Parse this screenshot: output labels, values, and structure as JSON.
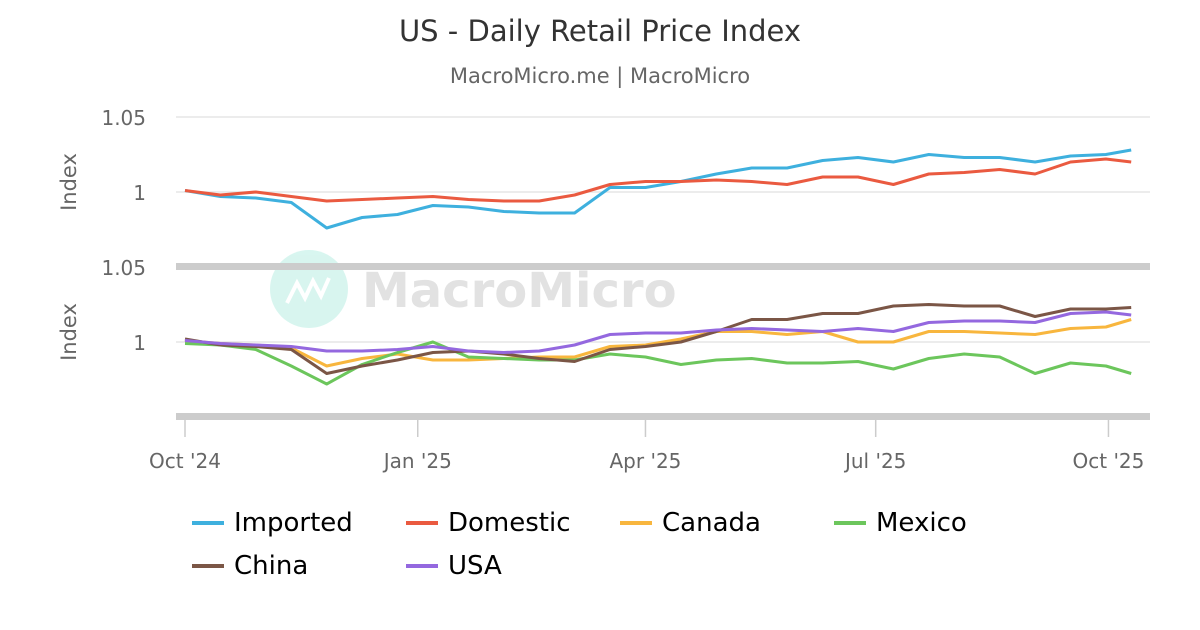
{
  "title": "US - Daily Retail Price Index",
  "subtitle": "MacroMicro.me | MacroMicro",
  "watermark": "MacroMicro",
  "chart_data": [
    {
      "type": "line",
      "panel": "top",
      "ylabel": "Index",
      "ylim": [
        0.95,
        1.05
      ],
      "yticks": [
        {
          "v": 1.05,
          "label": "1.05"
        },
        {
          "v": 1,
          "label": "1"
        }
      ],
      "grid": true,
      "series": [
        {
          "name": "Imported",
          "color": "#3eb0de",
          "values": [
            1.001,
            0.997,
            0.996,
            0.993,
            0.976,
            0.983,
            0.985,
            0.991,
            0.99,
            0.987,
            0.986,
            0.986,
            1.003,
            1.003,
            1.007,
            1.012,
            1.016,
            1.016,
            1.021,
            1.023,
            1.02,
            1.025,
            1.023,
            1.023,
            1.02,
            1.024,
            1.025,
            1.028
          ]
        },
        {
          "name": "Domestic",
          "color": "#ea5a40",
          "values": [
            1.001,
            0.998,
            1.0,
            0.997,
            0.994,
            0.995,
            0.996,
            0.997,
            0.995,
            0.994,
            0.994,
            0.998,
            1.005,
            1.007,
            1.007,
            1.008,
            1.007,
            1.005,
            1.01,
            1.01,
            1.005,
            1.012,
            1.013,
            1.015,
            1.012,
            1.02,
            1.022,
            1.02
          ]
        }
      ]
    },
    {
      "type": "line",
      "panel": "bottom",
      "ylabel": "Index",
      "ylim": [
        0.95,
        1.05
      ],
      "yticks": [
        {
          "v": 1.05,
          "label": "1.05"
        },
        {
          "v": 1,
          "label": "1"
        }
      ],
      "grid": true,
      "series": [
        {
          "name": "Canada",
          "color": "#f8b63e",
          "values": [
            1.001,
            0.999,
            0.998,
            0.996,
            0.984,
            0.989,
            0.992,
            0.988,
            0.988,
            0.989,
            0.99,
            0.99,
            0.997,
            0.998,
            1.002,
            1.007,
            1.007,
            1.005,
            1.007,
            1.0,
            1.0,
            1.007,
            1.007,
            1.006,
            1.005,
            1.009,
            1.01,
            1.015
          ]
        },
        {
          "name": "Mexico",
          "color": "#6cc65c",
          "values": [
            0.999,
            0.998,
            0.995,
            0.984,
            0.972,
            0.985,
            0.993,
            1.0,
            0.99,
            0.989,
            0.988,
            0.988,
            0.992,
            0.99,
            0.985,
            0.988,
            0.989,
            0.986,
            0.986,
            0.987,
            0.982,
            0.989,
            0.992,
            0.99,
            0.979,
            0.986,
            0.984,
            0.979
          ]
        },
        {
          "name": "China",
          "color": "#7b5646",
          "values": [
            1.002,
            0.998,
            0.997,
            0.995,
            0.979,
            0.984,
            0.988,
            0.993,
            0.994,
            0.992,
            0.989,
            0.987,
            0.995,
            0.997,
            1.0,
            1.007,
            1.015,
            1.015,
            1.019,
            1.019,
            1.024,
            1.025,
            1.024,
            1.024,
            1.017,
            1.022,
            1.022,
            1.023
          ]
        },
        {
          "name": "USA",
          "color": "#9468df",
          "values": [
            1.001,
            0.999,
            0.998,
            0.997,
            0.994,
            0.994,
            0.995,
            0.997,
            0.994,
            0.993,
            0.994,
            0.998,
            1.005,
            1.006,
            1.006,
            1.008,
            1.009,
            1.008,
            1.007,
            1.009,
            1.007,
            1.013,
            1.014,
            1.014,
            1.013,
            1.019,
            1.02,
            1.018
          ]
        }
      ]
    }
  ],
  "x_dates": [
    "2024-10-01",
    "2024-10-15",
    "2024-10-29",
    "2024-11-12",
    "2024-11-26",
    "2024-12-10",
    "2024-12-24",
    "2025-01-07",
    "2025-01-21",
    "2025-02-04",
    "2025-02-18",
    "2025-03-04",
    "2025-03-18",
    "2025-04-01",
    "2025-04-15",
    "2025-04-29",
    "2025-05-13",
    "2025-05-27",
    "2025-06-10",
    "2025-06-24",
    "2025-07-08",
    "2025-07-22",
    "2025-08-05",
    "2025-08-19",
    "2025-09-02",
    "2025-09-16",
    "2025-09-30",
    "2025-10-10"
  ],
  "xticks": [
    {
      "date": "2024-10-01",
      "label": "Oct '24"
    },
    {
      "date": "2025-01-01",
      "label": "Jan '25"
    },
    {
      "date": "2025-04-01",
      "label": "Apr '25"
    },
    {
      "date": "2025-07-01",
      "label": "Jul '25"
    },
    {
      "date": "2025-10-01",
      "label": "Oct '25"
    }
  ],
  "legend": {
    "placement": "bottom",
    "items": [
      {
        "label": "Imported",
        "color": "#3eb0de"
      },
      {
        "label": "Domestic",
        "color": "#ea5a40"
      },
      {
        "label": "Canada",
        "color": "#f8b63e"
      },
      {
        "label": "Mexico",
        "color": "#6cc65c"
      },
      {
        "label": "China",
        "color": "#7b5646"
      },
      {
        "label": "USA",
        "color": "#9468df"
      }
    ]
  }
}
